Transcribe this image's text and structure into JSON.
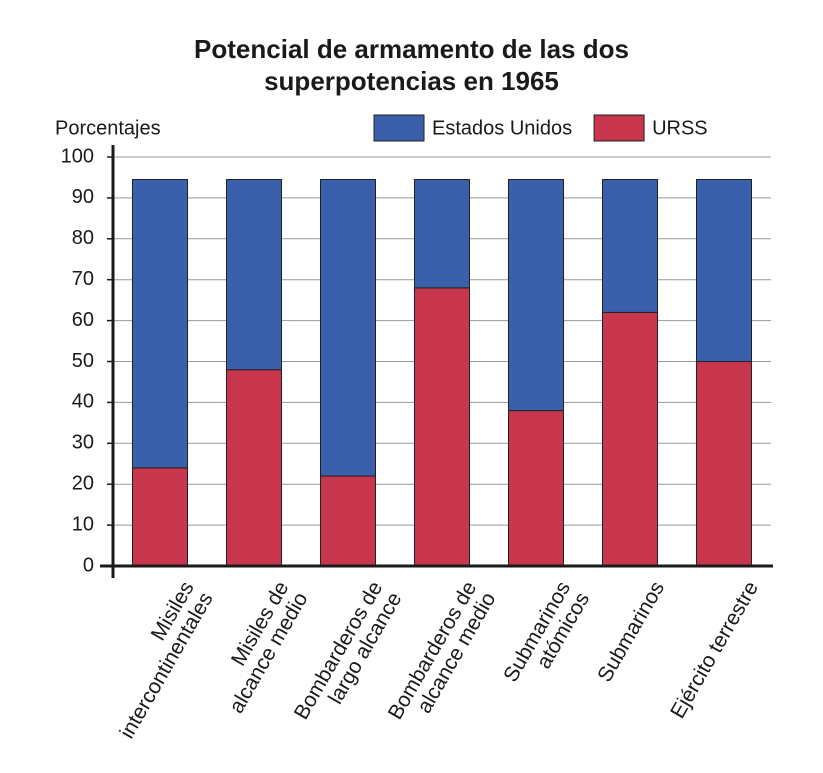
{
  "chart_data": {
    "type": "stacked_bar",
    "title": "Potencial de armamento de las dos\nsuperpotencias en 1965",
    "y_label": "Porcentajes",
    "categories": [
      "Misiles\nintercontinentales",
      "Misiles de\nalcance medio",
      "Bombarderos de\nlargo alcance",
      "Bombarderos de\nalcance medio",
      "Submarinos\natómicos",
      "Submarinos",
      "Ejército terrestre"
    ],
    "series": [
      {
        "name": "URSS",
        "color": "#c8364e",
        "values": [
          24,
          48,
          22,
          68,
          38,
          62,
          50
        ]
      },
      {
        "name": "Estados Unidos",
        "color": "#3a5fab",
        "values": [
          70.5,
          46.5,
          72.5,
          26.5,
          56.5,
          32.5,
          44.5
        ]
      }
    ],
    "legend_order": [
      1,
      0
    ],
    "ylim": [
      0,
      100
    ],
    "yticks": [
      0,
      10,
      20,
      30,
      40,
      50,
      60,
      70,
      80,
      90,
      100
    ],
    "grid": true
  }
}
